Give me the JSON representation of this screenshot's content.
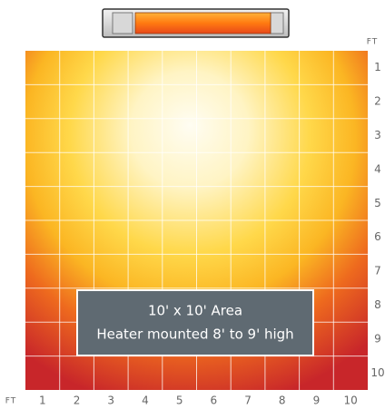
{
  "axis": {
    "y_unit": "FT",
    "x_unit": "FT",
    "y_labels": [
      1,
      2,
      3,
      4,
      5,
      6,
      7,
      8,
      9,
      10
    ],
    "x_labels": [
      1,
      2,
      3,
      4,
      5,
      6,
      7,
      8,
      9,
      10
    ]
  },
  "caption": {
    "line1": "10' x 10' Area",
    "line2": "Heater mounted 8' to 9' high"
  }
}
